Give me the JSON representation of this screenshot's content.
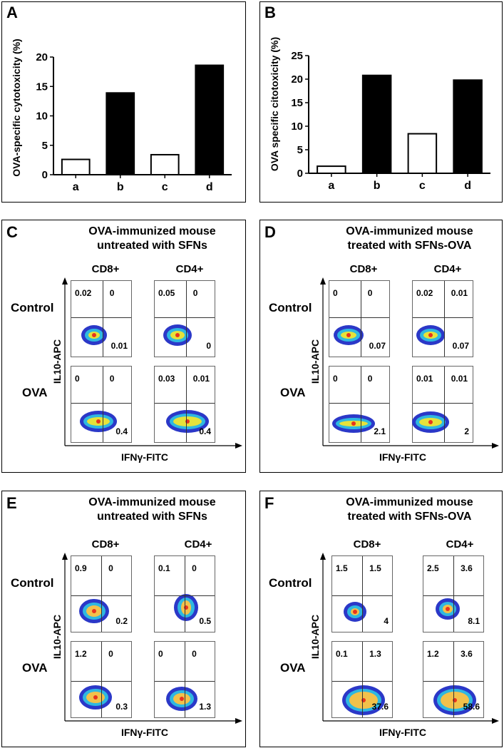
{
  "charts": [
    {
      "label": "A",
      "chart_data": {
        "type": "bar",
        "categories": [
          "a",
          "b",
          "c",
          "d"
        ],
        "values": [
          2.6,
          13.9,
          3.4,
          18.6
        ],
        "fills": [
          "white",
          "black",
          "white",
          "black"
        ],
        "ylabel": "OVA-specific cytotoxicity (%)",
        "ylim": [
          0,
          20
        ],
        "yticks": [
          "0",
          "5",
          "10",
          "15",
          "20"
        ]
      }
    },
    {
      "label": "B",
      "chart_data": {
        "type": "bar",
        "categories": [
          "a",
          "b",
          "c",
          "d"
        ],
        "values": [
          1.5,
          20.8,
          8.4,
          19.8
        ],
        "fills": [
          "white",
          "black",
          "white",
          "black"
        ],
        "ylabel": "OVA specific citotoxicity (%)",
        "ylim": [
          0,
          25
        ],
        "yticks": [
          "0",
          "5",
          "10",
          "15",
          "20",
          "25"
        ]
      }
    }
  ],
  "flow_panels": [
    {
      "label": "C",
      "title_line1": "OVA-immunized mouse",
      "title_line2": "untreated with SFNs",
      "col1": "CD8+",
      "col2": "CD4+",
      "row1": "Control",
      "row2": "OVA",
      "ylabel": "IL10-APC",
      "xlabel": "IFNγ-FITC",
      "plots": [
        {
          "ul": "0.02",
          "ur": "0",
          "lr": "0.01"
        },
        {
          "ul": "0.05",
          "ur": "0",
          "lr": "0"
        },
        {
          "ul": "0",
          "ur": "0",
          "lr": "0.4"
        },
        {
          "ul": "0.03",
          "ur": "0.01",
          "lr": "0.4"
        }
      ]
    },
    {
      "label": "D",
      "title_line1": "OVA-immunized mouse",
      "title_line2": "treated with SFNs-OVA",
      "col1": "CD8+",
      "col2": "CD4+",
      "row1": "Control",
      "row2": "OVA",
      "ylabel": "IL10-APC",
      "xlabel": "IFNγ-FITC",
      "plots": [
        {
          "ul": "0",
          "ur": "0",
          "lr": "0.07"
        },
        {
          "ul": "0.02",
          "ur": "0.01",
          "lr": "0.07"
        },
        {
          "ul": "0",
          "ur": "0",
          "lr": "2.1"
        },
        {
          "ul": "0.01",
          "ur": "0.01",
          "lr": "2"
        }
      ]
    },
    {
      "label": "E",
      "title_line1": "OVA-immunized mouse",
      "title_line2": "untreated with SFNs",
      "col1": "CD8+",
      "col2": "CD4+",
      "row1": "Control",
      "row2": "OVA",
      "ylabel": "IL10-APC",
      "xlabel": "IFNγ-FITC",
      "plots": [
        {
          "ul": "0.9",
          "ur": "0",
          "lr": "0.2"
        },
        {
          "ul": "0.1",
          "ur": "0",
          "lr": "0.5"
        },
        {
          "ul": "1.2",
          "ur": "0",
          "lr": "0.3"
        },
        {
          "ul": "0",
          "ur": "0",
          "lr": "1.3"
        }
      ]
    },
    {
      "label": "F",
      "title_line1": "OVA-immunized mouse",
      "title_line2": "treated with SFNs-OVA",
      "col1": "CD8+",
      "col2": "CD4+",
      "row1": "Control",
      "row2": "OVA",
      "ylabel": "IL10-APC",
      "xlabel": "IFNγ-FITC",
      "plots": [
        {
          "ul": "1.5",
          "ur": "1.5",
          "lr": "4"
        },
        {
          "ul": "2.5",
          "ur": "3.6",
          "lr": "8.1"
        },
        {
          "ul": "0.1",
          "ur": "1.3",
          "lr": "37.6"
        },
        {
          "ul": "1.2",
          "ur": "3.6",
          "lr": "58.6"
        }
      ]
    }
  ]
}
